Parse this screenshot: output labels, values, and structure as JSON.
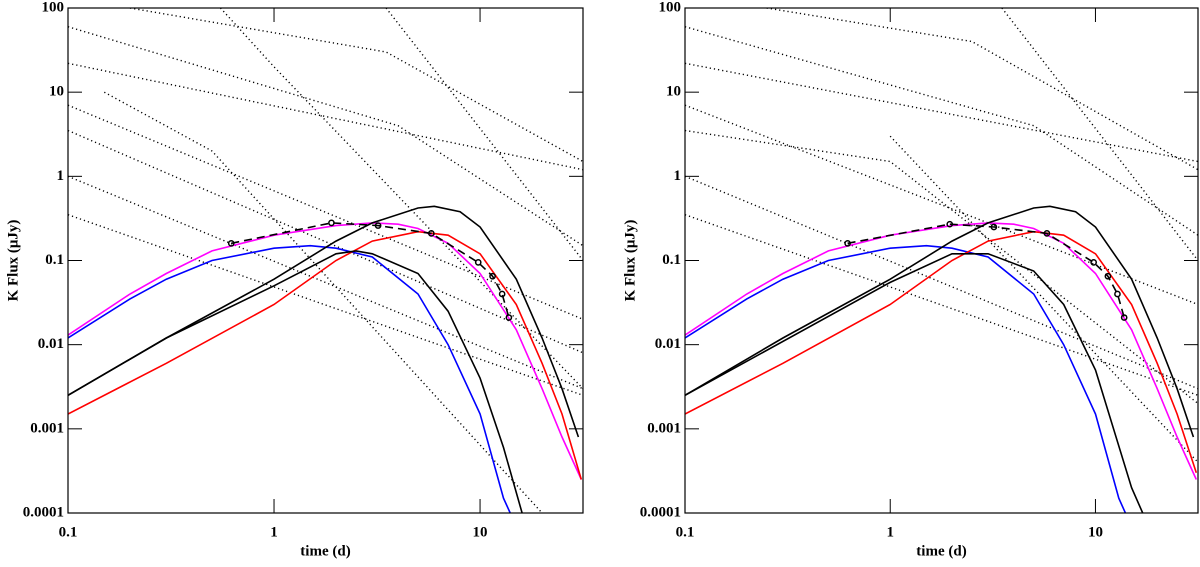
{
  "chart_data": [
    {
      "type": "line",
      "xlabel": "time (d)",
      "ylabel": "K Flux (μJy)",
      "xscale": "log",
      "yscale": "log",
      "xlim": [
        0.1,
        31.6
      ],
      "ylim": [
        0.0001,
        100
      ],
      "xticks": [
        0.1,
        1,
        10
      ],
      "yticks": [
        100,
        10,
        1,
        0.1,
        0.01,
        0.001,
        0.0001
      ],
      "series": [
        {
          "color": "#000000",
          "style": "dotted",
          "x": [
            0.2,
            3.5,
            31.6
          ],
          "values": [
            100,
            30,
            1.5
          ]
        },
        {
          "color": "#000000",
          "style": "dotted",
          "x": [
            0.1,
            4,
            31.6
          ],
          "values": [
            60,
            4,
            0.15
          ]
        },
        {
          "color": "#000000",
          "style": "dotted",
          "x": [
            0.1,
            31.6
          ],
          "values": [
            22,
            1.2
          ]
        },
        {
          "color": "#000000",
          "style": "dotted",
          "x": [
            0.1,
            31.6
          ],
          "values": [
            7,
            0.02
          ]
        },
        {
          "color": "#000000",
          "style": "dotted",
          "x": [
            0.1,
            31.6
          ],
          "values": [
            3.5,
            0.008
          ]
        },
        {
          "color": "#000000",
          "style": "dotted",
          "x": [
            0.1,
            31.6
          ],
          "values": [
            1,
            0.003
          ]
        },
        {
          "color": "#000000",
          "style": "dotted",
          "x": [
            0.1,
            31.6
          ],
          "values": [
            0.35,
            0.0025
          ]
        },
        {
          "color": "#000000",
          "style": "dotted",
          "x": [
            0.15,
            0.5,
            20
          ],
          "values": [
            10,
            2,
            0.0001
          ]
        },
        {
          "color": "#000000",
          "style": "dotted",
          "x": [
            0.55,
            1,
            31.6
          ],
          "values": [
            100,
            20,
            0.003
          ]
        },
        {
          "color": "#000000",
          "style": "dotted",
          "x": [
            3.5,
            31.6
          ],
          "values": [
            100,
            0.1
          ]
        },
        {
          "color": "#ff00ff",
          "style": "solid",
          "x": [
            0.1,
            0.2,
            0.3,
            0.5,
            1,
            2,
            3,
            4,
            5,
            7,
            10,
            15,
            20,
            25,
            31
          ],
          "values": [
            0.013,
            0.04,
            0.07,
            0.13,
            0.2,
            0.26,
            0.28,
            0.27,
            0.24,
            0.16,
            0.07,
            0.015,
            0.003,
            0.0008,
            0.00025
          ]
        },
        {
          "color": "#0000ff",
          "style": "solid",
          "x": [
            0.1,
            0.2,
            0.3,
            0.5,
            1,
            1.5,
            2,
            3,
            5,
            7,
            10,
            13,
            14
          ],
          "values": [
            0.012,
            0.035,
            0.06,
            0.1,
            0.14,
            0.15,
            0.14,
            0.11,
            0.04,
            0.01,
            0.0015,
            0.00015,
            0.0001
          ]
        },
        {
          "color": "#ff0000",
          "style": "solid",
          "x": [
            0.1,
            0.3,
            1,
            2,
            3,
            5,
            7,
            10,
            15,
            20,
            25,
            31
          ],
          "values": [
            0.0015,
            0.006,
            0.03,
            0.1,
            0.17,
            0.22,
            0.2,
            0.12,
            0.03,
            0.006,
            0.0015,
            0.00025
          ]
        },
        {
          "color": "#000000",
          "style": "solid",
          "x": [
            0.1,
            0.3,
            1,
            2,
            3,
            5,
            6,
            8,
            10,
            15,
            20,
            25,
            30
          ],
          "values": [
            0.0025,
            0.012,
            0.06,
            0.17,
            0.28,
            0.42,
            0.44,
            0.38,
            0.25,
            0.06,
            0.012,
            0.003,
            0.0008
          ]
        },
        {
          "color": "#000000",
          "style": "solid",
          "x": [
            0.1,
            0.3,
            1,
            2,
            2.5,
            3,
            5,
            7,
            10,
            13,
            16
          ],
          "values": [
            0.0025,
            0.012,
            0.05,
            0.12,
            0.13,
            0.12,
            0.07,
            0.025,
            0.004,
            0.0006,
            0.0001
          ]
        },
        {
          "color": "#000000",
          "style": "dashed",
          "markers": true,
          "x": [
            0.62,
            1.9,
            3.2,
            5.8,
            9.8,
            11.5,
            12.8,
            13.8
          ],
          "values": [
            0.16,
            0.28,
            0.26,
            0.21,
            0.095,
            0.065,
            0.04,
            0.021
          ]
        }
      ]
    },
    {
      "type": "line",
      "xlabel": "time (d)",
      "ylabel": "K Flux (μJy)",
      "xscale": "log",
      "yscale": "log",
      "xlim": [
        0.1,
        31.6
      ],
      "ylim": [
        0.0001,
        100
      ],
      "xticks": [
        0.1,
        1,
        10
      ],
      "yticks": [
        100,
        10,
        1,
        0.1,
        0.01,
        0.001,
        0.0001
      ],
      "series": [
        {
          "color": "#000000",
          "style": "dotted",
          "x": [
            0.25,
            2.5,
            31.6
          ],
          "values": [
            100,
            40,
            1.2
          ]
        },
        {
          "color": "#000000",
          "style": "dotted",
          "x": [
            0.1,
            5,
            31.6
          ],
          "values": [
            60,
            4,
            0.2
          ]
        },
        {
          "color": "#000000",
          "style": "dotted",
          "x": [
            0.1,
            31.6
          ],
          "values": [
            22,
            1.5
          ]
        },
        {
          "color": "#000000",
          "style": "dotted",
          "x": [
            0.1,
            31.6
          ],
          "values": [
            7,
            0.03
          ]
        },
        {
          "color": "#000000",
          "style": "dotted",
          "x": [
            0.1,
            1,
            31.6
          ],
          "values": [
            3.5,
            1.5,
            0.002
          ]
        },
        {
          "color": "#000000",
          "style": "dotted",
          "x": [
            0.1,
            31.6
          ],
          "values": [
            1,
            0.003
          ]
        },
        {
          "color": "#000000",
          "style": "dotted",
          "x": [
            0.1,
            31.6
          ],
          "values": [
            0.35,
            0.0025
          ]
        },
        {
          "color": "#000000",
          "style": "dotted",
          "x": [
            1,
            31.6
          ],
          "values": [
            3,
            0.0004
          ]
        },
        {
          "color": "#000000",
          "style": "dotted",
          "x": [
            3.5,
            31.6
          ],
          "values": [
            100,
            0.1
          ]
        },
        {
          "color": "#ff00ff",
          "style": "solid",
          "x": [
            0.1,
            0.2,
            0.3,
            0.5,
            1,
            2,
            3,
            4,
            5,
            7,
            10,
            15,
            20,
            25,
            31
          ],
          "values": [
            0.013,
            0.04,
            0.07,
            0.13,
            0.2,
            0.26,
            0.28,
            0.27,
            0.24,
            0.16,
            0.07,
            0.015,
            0.003,
            0.0008,
            0.00025
          ]
        },
        {
          "color": "#0000ff",
          "style": "solid",
          "x": [
            0.1,
            0.2,
            0.3,
            0.5,
            1,
            1.5,
            2,
            3,
            5,
            7,
            10,
            13,
            14
          ],
          "values": [
            0.012,
            0.035,
            0.06,
            0.1,
            0.14,
            0.15,
            0.14,
            0.11,
            0.04,
            0.01,
            0.0015,
            0.00015,
            0.0001
          ]
        },
        {
          "color": "#ff0000",
          "style": "solid",
          "x": [
            0.1,
            0.3,
            1,
            2,
            3,
            5,
            7,
            10,
            15,
            20,
            25,
            31
          ],
          "values": [
            0.0015,
            0.006,
            0.03,
            0.1,
            0.17,
            0.22,
            0.2,
            0.12,
            0.03,
            0.006,
            0.0015,
            0.0003
          ]
        },
        {
          "color": "#000000",
          "style": "solid",
          "x": [
            0.1,
            0.3,
            1,
            2,
            3,
            5,
            6,
            8,
            10,
            15,
            20,
            25,
            30
          ],
          "values": [
            0.0025,
            0.012,
            0.06,
            0.17,
            0.28,
            0.42,
            0.44,
            0.38,
            0.25,
            0.06,
            0.012,
            0.003,
            0.0008
          ]
        },
        {
          "color": "#000000",
          "style": "solid",
          "x": [
            0.1,
            1,
            2,
            3,
            5,
            7,
            10,
            15,
            17
          ],
          "values": [
            0.0025,
            0.055,
            0.12,
            0.12,
            0.075,
            0.03,
            0.005,
            0.0002,
            0.0001
          ]
        },
        {
          "color": "#000000",
          "style": "dashed",
          "markers": true,
          "x": [
            0.62,
            1.95,
            3.2,
            5.8,
            9.8,
            11.5,
            12.8,
            13.8
          ],
          "values": [
            0.16,
            0.27,
            0.25,
            0.21,
            0.095,
            0.065,
            0.04,
            0.021
          ]
        }
      ]
    }
  ]
}
